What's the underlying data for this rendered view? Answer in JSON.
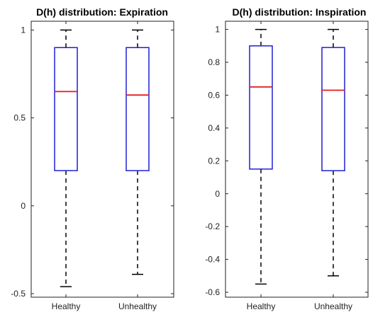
{
  "chart_data": [
    {
      "type": "box",
      "title": "D(h) distribution: Expiration",
      "categories": [
        "Healthy",
        "Unhealthy"
      ],
      "ylim": [
        -0.52,
        1.05
      ],
      "yticks": [
        -0.5,
        0,
        0.5,
        1
      ],
      "ytick_labels": [
        "-0.5",
        "0",
        "0.5",
        "1"
      ],
      "boxes": [
        {
          "name": "Healthy",
          "min": -0.46,
          "q1": 0.2,
          "median": 0.65,
          "q3": 0.9,
          "max": 1.0
        },
        {
          "name": "Unhealthy",
          "min": -0.39,
          "q1": 0.2,
          "median": 0.63,
          "q3": 0.9,
          "max": 1.0
        }
      ]
    },
    {
      "type": "box",
      "title": "D(h) distribution: Inspiration",
      "categories": [
        "Healthy",
        "Unhealthy"
      ],
      "ylim": [
        -0.63,
        1.05
      ],
      "yticks": [
        -0.6,
        -0.4,
        -0.2,
        0,
        0.2,
        0.4,
        0.6,
        0.8,
        1
      ],
      "ytick_labels": [
        "-0.6",
        "-0.4",
        "-0.2",
        "0",
        "0.2",
        "0.4",
        "0.6",
        "0.8",
        "1"
      ],
      "boxes": [
        {
          "name": "Healthy",
          "min": -0.55,
          "q1": 0.15,
          "median": 0.65,
          "q3": 0.9,
          "max": 1.0
        },
        {
          "name": "Unhealthy",
          "min": -0.5,
          "q1": 0.14,
          "median": 0.63,
          "q3": 0.89,
          "max": 1.0
        }
      ]
    }
  ]
}
